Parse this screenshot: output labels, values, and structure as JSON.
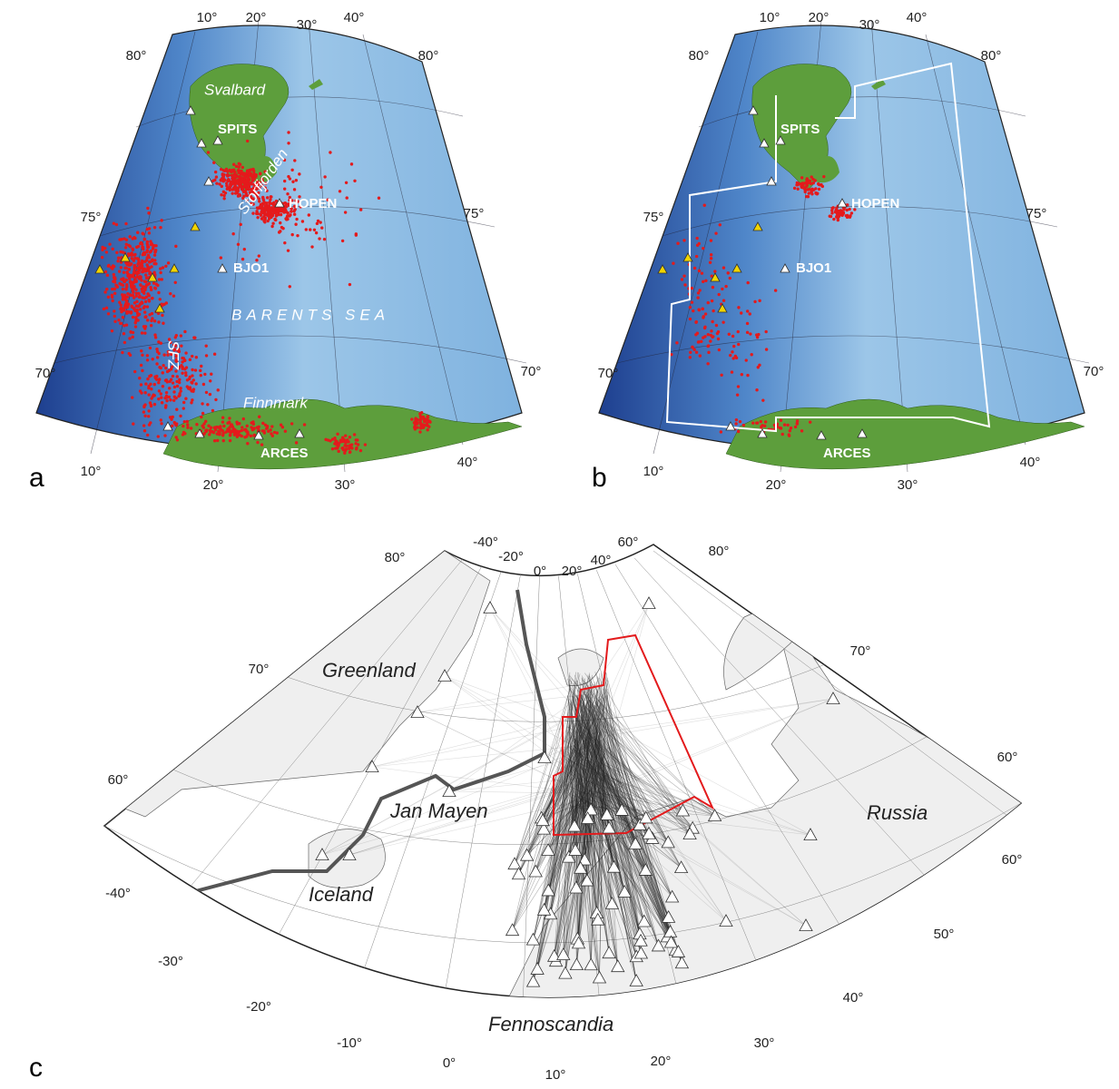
{
  "panel_a": {
    "letter": "a",
    "places": [
      "Svalbard",
      "Storfjorden",
      "BARENTS SEA",
      "SFZ",
      "Finnmark"
    ],
    "stations": [
      "SPITS",
      "HOPEN",
      "BJO1",
      "ARCES"
    ],
    "graticule_labels": [
      "10°",
      "20°",
      "30°",
      "40°",
      "80°",
      "75°",
      "70°",
      "80°",
      "75°",
      "70°",
      "10°",
      "20°",
      "30°",
      "40°"
    ]
  },
  "panel_b": {
    "letter": "b",
    "stations": [
      "SPITS",
      "HOPEN",
      "BJO1",
      "ARCES"
    ],
    "graticule_labels": [
      "10°",
      "20°",
      "30°",
      "40°",
      "80°",
      "75°",
      "70°",
      "80°",
      "75°",
      "70°",
      "10°",
      "20°",
      "30°",
      "40°"
    ]
  },
  "panel_c": {
    "letter": "c",
    "places": [
      "Greenland",
      "Jan Mayen",
      "Iceland",
      "Russia",
      "Fennoscandia"
    ],
    "graticule_labels": [
      "-40°",
      "-20°",
      "0°",
      "20°",
      "40°",
      "60°",
      "80°",
      "70°",
      "60°",
      "80°",
      "70°",
      "60°",
      "60°",
      "50°",
      "40°",
      "30°",
      "20°",
      "10°",
      "0°",
      "-10°",
      "-20°",
      "-30°",
      "-40°"
    ]
  }
}
